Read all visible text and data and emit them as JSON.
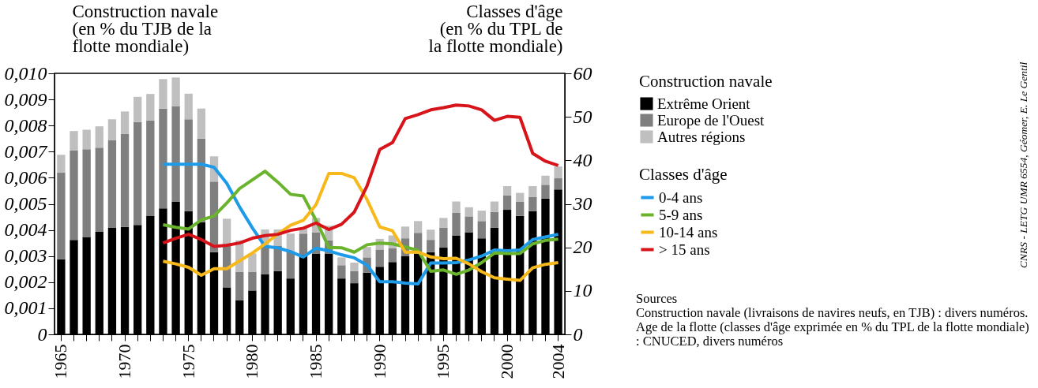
{
  "chart_data": {
    "type": "bar",
    "stacked": true,
    "ylabel": "Construction navale\n(en % du TJB de la\nflotte mondiale)",
    "y2label": "Classes d'âge\n(en % du TPL de\nla flotte mondiale)",
    "legend_title": [
      "Construction navale",
      "Classes d'âge"
    ],
    "legend": "right",
    "categories": [
      "1965",
      null,
      null,
      null,
      null,
      "1970",
      null,
      null,
      null,
      null,
      "1975",
      null,
      null,
      null,
      null,
      "1980",
      null,
      null,
      null,
      null,
      "1985",
      null,
      null,
      null,
      null,
      "1990",
      null,
      null,
      null,
      null,
      "1995",
      null,
      null,
      null,
      null,
      "2000",
      null,
      null,
      null,
      "2004"
    ],
    "ylim": [
      0,
      0.01
    ],
    "yticks": [
      0,
      {
        "value": 0.001,
        "label": "0,001"
      },
      {
        "value": 0.002,
        "label": "0,002"
      },
      {
        "value": 0.003,
        "label": "0,003"
      },
      {
        "value": 0.004,
        "label": "0,004"
      },
      {
        "value": 0.005,
        "label": "0,005"
      },
      {
        "value": 0.006,
        "label": "0,006"
      },
      {
        "value": 0.007,
        "label": "0,007"
      },
      {
        "value": 0.008,
        "label": "0,008"
      },
      {
        "value": 0.009,
        "label": "0,009"
      },
      {
        "value": 0.01,
        "label": "0,010"
      }
    ],
    "y2lim": [
      0,
      60
    ],
    "y2ticks": [
      0,
      10,
      20,
      30,
      40,
      50,
      60
    ],
    "series": [
      {
        "name": "Extrême Orient",
        "color": "#000000",
        "values": [
          0.00288,
          0.00362,
          0.00373,
          0.00394,
          0.00408,
          0.00412,
          0.00419,
          0.00453,
          0.00483,
          0.00509,
          0.00472,
          0.0043,
          0.00315,
          0.0018,
          0.0013,
          0.00168,
          0.00231,
          0.00243,
          0.00214,
          0.00305,
          0.0031,
          0.0031,
          0.00214,
          0.00196,
          0.00236,
          0.00259,
          0.00277,
          0.00299,
          0.0031,
          0.00315,
          0.00332,
          0.00379,
          0.00391,
          0.00368,
          0.00408,
          0.00477,
          0.00454,
          0.00472,
          0.0052,
          0.00555
        ]
      },
      {
        "name": "Europe de l'Ouest",
        "color": "#7f7f7f",
        "values": [
          0.00331,
          0.00342,
          0.00336,
          0.00321,
          0.00335,
          0.00356,
          0.00394,
          0.00366,
          0.00382,
          0.00366,
          0.00352,
          0.0032,
          0.0027,
          0.0016,
          0.0011,
          0.00072,
          0.00109,
          0.00097,
          0.00101,
          0.00081,
          0.00081,
          0.0005,
          0.00051,
          0.00046,
          0.00059,
          0.00066,
          0.00053,
          0.00069,
          0.00079,
          0.00047,
          0.00076,
          0.00086,
          0.00061,
          0.00066,
          0.00061,
          0.00055,
          0.00055,
          0.00055,
          0.00053,
          0.00043
        ]
      },
      {
        "name": "Autres régions",
        "color": "#bfbfbf",
        "values": [
          0.00069,
          0.00075,
          0.00075,
          0.00082,
          0.00081,
          0.00086,
          0.00097,
          0.00102,
          0.00113,
          0.00109,
          0.00098,
          0.00115,
          0.00097,
          0.00103,
          0.0012,
          0.0007,
          0.00062,
          0.00062,
          0.00071,
          0.00019,
          0.00055,
          0.00056,
          0.0003,
          0.00033,
          0.0004,
          0.00041,
          0.00049,
          0.00045,
          0.00045,
          0.00039,
          0.00038,
          0.00044,
          0.00035,
          0.0004,
          0.0004,
          0.00036,
          0.00033,
          0.00041,
          0.00035,
          0.00045
        ]
      },
      {
        "name": "0-4 ans",
        "type": "line",
        "axis": "y2",
        "color": "#1e9be8",
        "values": [
          null,
          null,
          null,
          null,
          null,
          null,
          null,
          null,
          39.1,
          39.1,
          39.1,
          39.1,
          38.4,
          34.7,
          29.3,
          24.5,
          20.2,
          19.9,
          19.0,
          17.8,
          19.8,
          19.2,
          18.3,
          17.6,
          15.9,
          12.1,
          12.1,
          11.8,
          11.6,
          16.4,
          16.4,
          16.5,
          17.1,
          18.0,
          19.4,
          19.2,
          19.4,
          21.8,
          22.4,
          23.0
        ]
      },
      {
        "name": "5-9 ans",
        "type": "line",
        "axis": "y2",
        "color": "#6ab42d",
        "values": [
          null,
          null,
          null,
          null,
          null,
          null,
          null,
          null,
          25.2,
          24.6,
          24.2,
          26.3,
          27.2,
          30.2,
          33.5,
          35.5,
          37.5,
          35.0,
          32.2,
          31.8,
          26.2,
          20.0,
          19.9,
          18.9,
          20.6,
          21.0,
          20.8,
          20.1,
          19.3,
          14.5,
          14.8,
          13.8,
          14.8,
          16.5,
          18.7,
          18.6,
          18.6,
          20.8,
          21.6,
          21.9
        ]
      },
      {
        "name": "10-14 ans",
        "type": "line",
        "axis": "y2",
        "color": "#f6b81b",
        "values": [
          null,
          null,
          null,
          null,
          null,
          null,
          null,
          null,
          16.8,
          16.2,
          15.4,
          13.6,
          15.1,
          15.1,
          16.9,
          18.7,
          20.8,
          23.1,
          25.1,
          26.2,
          29.8,
          37.0,
          37.0,
          36.0,
          31.0,
          24.7,
          23.8,
          18.9,
          18.9,
          17.8,
          17.4,
          17.5,
          16.2,
          14.4,
          13.0,
          12.7,
          12.4,
          15.3,
          16.1,
          16.5
        ]
      },
      {
        "name": "> 15 ans",
        "type": "line",
        "axis": "y2",
        "color": "#d7141a",
        "values": [
          null,
          null,
          null,
          null,
          null,
          null,
          null,
          null,
          21.0,
          22.1,
          23.0,
          21.8,
          20.2,
          20.5,
          21.0,
          22.1,
          22.7,
          23.0,
          23.9,
          24.4,
          25.6,
          24.1,
          25.3,
          28.1,
          34.1,
          42.5,
          44.1,
          49.6,
          50.5,
          51.6,
          52.1,
          52.7,
          52.5,
          51.6,
          49.2,
          50.1,
          49.9,
          41.6,
          39.8,
          38.8
        ]
      }
    ],
    "annotations": [
      "Sources",
      "Construction navale (livraisons de navires neufs, en TJB) : divers numéros.",
      "Age de la flotte (classes d'âge exprimée en % du TPL de la flotte mondiale) : CNUCED, divers numéros",
      "CNRS - LETG UMR 6554, Géomer, E. Le Gentil"
    ]
  }
}
